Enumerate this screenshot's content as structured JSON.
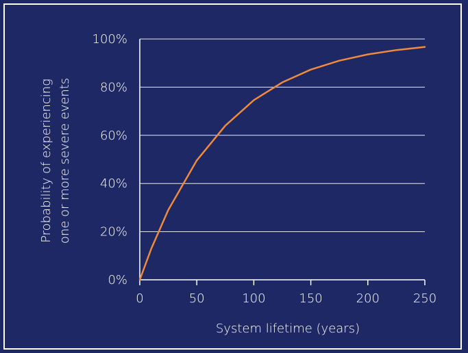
{
  "chart_data": {
    "type": "line",
    "title": "",
    "xlabel": "System lifetime (years)",
    "ylabel_lines": [
      "Probability of experiencing",
      "one or more severe events"
    ],
    "xlim": [
      0,
      250
    ],
    "ylim": [
      0,
      100
    ],
    "xticks": [
      0,
      50,
      100,
      150,
      200,
      250
    ],
    "yticks": [
      0,
      20,
      40,
      60,
      80,
      100
    ],
    "ytick_labels": [
      "0%",
      "20%",
      "40%",
      "60%",
      "80%",
      "100%"
    ],
    "xtick_labels": [
      "0",
      "50",
      "100",
      "150",
      "200",
      "250"
    ],
    "grid": "horizontal",
    "series": [
      {
        "color": "#f08a3c",
        "x": [
          0,
          10,
          25,
          50,
          75,
          100,
          125,
          150,
          175,
          200,
          225,
          250
        ],
        "y": [
          0,
          12.8,
          29.0,
          49.6,
          64.0,
          74.6,
          82.0,
          87.3,
          91.0,
          93.6,
          95.4,
          96.7
        ]
      }
    ]
  },
  "colors": {
    "background": "#1e2864",
    "foreground": "#ffffff",
    "series": "#f08a3c"
  }
}
